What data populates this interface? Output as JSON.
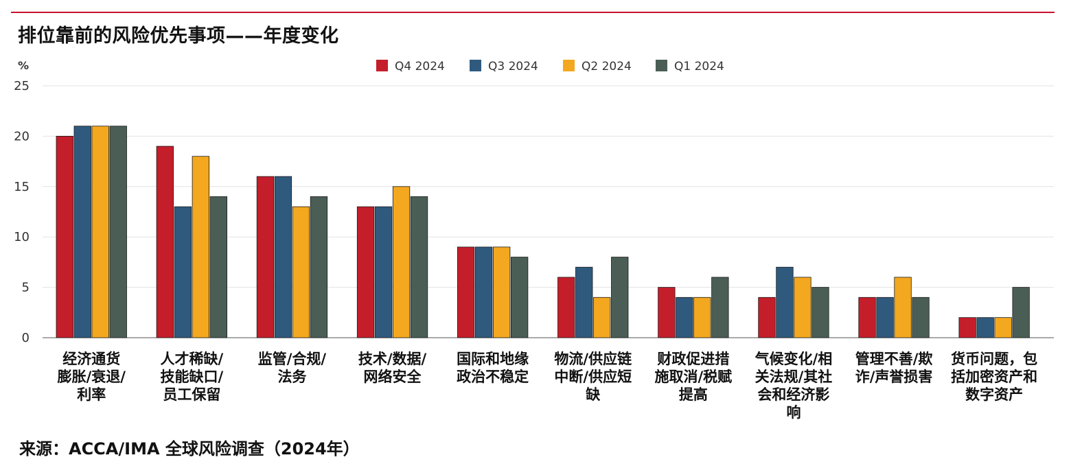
{
  "title": "排位靠前的风险优先事项——年度变化",
  "source": "来源：ACCA/IMA 全球风险调查（2024年）",
  "colors": {
    "rule": "#c8102e",
    "grid": "#e2e2e2",
    "axis": "#555555"
  },
  "chart_data": {
    "type": "bar",
    "ylabel": "%",
    "ylim": [
      0,
      25
    ],
    "yticks": [
      0,
      5,
      10,
      15,
      20,
      25
    ],
    "grid": true,
    "legend_position": "top-center",
    "categories": [
      [
        "经济通货",
        "膨胀/衰退/",
        "利率"
      ],
      [
        "人才稀缺/",
        "技能缺口/",
        "员工保留"
      ],
      [
        "监管/合规/",
        "法务"
      ],
      [
        "技术/数据/",
        "网络安全"
      ],
      [
        "国际和地缘",
        "政治不稳定"
      ],
      [
        "物流/供应链",
        "中断/供应短",
        "缺"
      ],
      [
        "财政促进措",
        "施取消/税赋",
        "提高"
      ],
      [
        "气候变化/相",
        "关法规/其社",
        "会和经济影",
        "响"
      ],
      [
        "管理不善/欺",
        "诈/声誉损害"
      ],
      [
        "货币问题，包",
        "括加密资产和",
        "数字资产"
      ]
    ],
    "series": [
      {
        "name": "Q4 2024",
        "color": "#c41e2a",
        "values": [
          20,
          19,
          16,
          13,
          9,
          6,
          5,
          4,
          4,
          2
        ]
      },
      {
        "name": "Q3 2024",
        "color": "#2f5a7e",
        "values": [
          21,
          13,
          16,
          13,
          9,
          7,
          4,
          7,
          4,
          2
        ]
      },
      {
        "name": "Q2 2024",
        "color": "#f3a81f",
        "values": [
          21,
          18,
          13,
          15,
          9,
          4,
          4,
          6,
          6,
          2
        ]
      },
      {
        "name": "Q1 2024",
        "color": "#4a5e55",
        "values": [
          21,
          14,
          14,
          14,
          8,
          8,
          6,
          5,
          4,
          5
        ]
      }
    ]
  }
}
